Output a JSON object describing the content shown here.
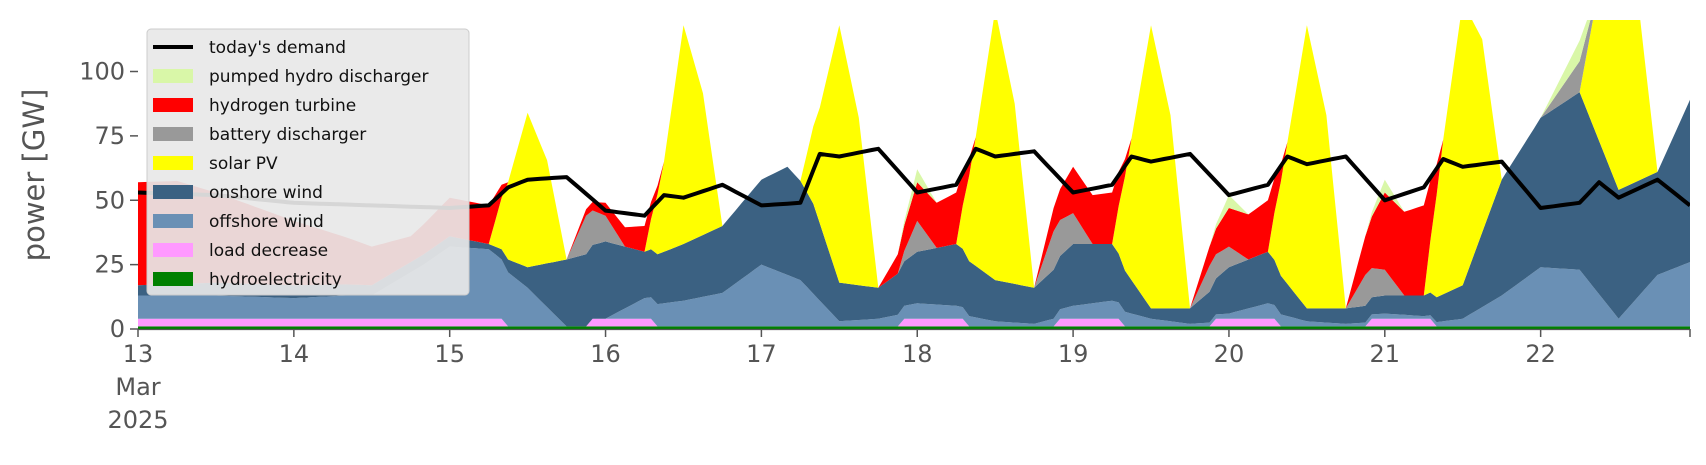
{
  "chart_data": {
    "type": "area",
    "ylabel": "power [GW]",
    "xlabel": "",
    "ylim": [
      0,
      120
    ],
    "xlim": [
      "2025-03-13T00:00",
      "2025-03-22T23:00"
    ],
    "yticks": [
      0,
      25,
      50,
      75,
      100
    ],
    "x_tick_labels": [
      {
        "date": "2025-03-13",
        "lines": [
          "13",
          "Mar",
          "2025"
        ]
      },
      {
        "date": "2025-03-14",
        "lines": [
          "14"
        ]
      },
      {
        "date": "2025-03-15",
        "lines": [
          "15"
        ]
      },
      {
        "date": "2025-03-16",
        "lines": [
          "16"
        ]
      },
      {
        "date": "2025-03-17",
        "lines": [
          "17"
        ]
      },
      {
        "date": "2025-03-18",
        "lines": [
          "18"
        ]
      },
      {
        "date": "2025-03-19",
        "lines": [
          "19"
        ]
      },
      {
        "date": "2025-03-20",
        "lines": [
          "20"
        ]
      },
      {
        "date": "2025-03-21",
        "lines": [
          "21"
        ]
      },
      {
        "date": "2025-03-22",
        "lines": [
          "22"
        ]
      }
    ],
    "grid": false,
    "legend_position": "top-left",
    "legend": [
      {
        "label": "today's demand",
        "color": "#000000",
        "kind": "line"
      },
      {
        "label": "pumped hydro discharger",
        "color": "#d9f7a8",
        "kind": "patch"
      },
      {
        "label": "hydrogen turbine",
        "color": "#ff0000",
        "kind": "patch"
      },
      {
        "label": "battery discharger",
        "color": "#999999",
        "kind": "patch"
      },
      {
        "label": "solar PV",
        "color": "#ffff00",
        "kind": "patch"
      },
      {
        "label": "onshore wind",
        "color": "#3b6182",
        "kind": "patch"
      },
      {
        "label": "offshore wind",
        "color": "#6a90b5",
        "kind": "patch"
      },
      {
        "label": "load decrease",
        "color": "#ff99ff",
        "kind": "patch"
      },
      {
        "label": "hydroelectricity",
        "color": "#008000",
        "kind": "patch"
      }
    ],
    "stack_order_bottom_to_top": [
      "hydroelectricity",
      "load decrease",
      "offshore wind",
      "onshore wind",
      "solar PV",
      "battery discharger",
      "hydrogen turbine",
      "pumped hydro discharger"
    ],
    "series": [
      {
        "name": "hydroelectricity",
        "color": "#008000",
        "x": [
          "2025-03-13T00:00",
          "2025-03-22T23:00"
        ],
        "values": [
          1,
          1
        ]
      },
      {
        "name": "load decrease",
        "color": "#ff99ff",
        "x": [
          "2025-03-13T00:00",
          "2025-03-15T08:00",
          "2025-03-15T09:00",
          "2025-03-15T21:00",
          "2025-03-15T22:00",
          "2025-03-16T07:00",
          "2025-03-16T08:00",
          "2025-03-17T21:00",
          "2025-03-17T22:00",
          "2025-03-18T07:00",
          "2025-03-18T08:00",
          "2025-03-18T21:00",
          "2025-03-18T22:00",
          "2025-03-19T07:00",
          "2025-03-19T08:00",
          "2025-03-19T21:00",
          "2025-03-19T22:00",
          "2025-03-20T07:00",
          "2025-03-20T08:00",
          "2025-03-20T21:00",
          "2025-03-20T22:00",
          "2025-03-21T07:00",
          "2025-03-21T08:00",
          "2025-03-22T23:00"
        ],
        "values": [
          3,
          3,
          0,
          0,
          3,
          3,
          0,
          0,
          3,
          3,
          0,
          0,
          3,
          3,
          0,
          0,
          3,
          3,
          0,
          0,
          3,
          3,
          0,
          0
        ]
      },
      {
        "name": "offshore wind",
        "color": "#6a90b5",
        "x": [
          "2025-03-13T00:00",
          "2025-03-13T12:00",
          "2025-03-14T00:00",
          "2025-03-14T08:00",
          "2025-03-14T12:00",
          "2025-03-14T20:00",
          "2025-03-15T00:00",
          "2025-03-15T06:00",
          "2025-03-15T12:00",
          "2025-03-15T18:00",
          "2025-03-16T00:00",
          "2025-03-16T06:00",
          "2025-03-16T12:00",
          "2025-03-16T18:00",
          "2025-03-17T00:00",
          "2025-03-17T06:00",
          "2025-03-17T12:00",
          "2025-03-17T18:00",
          "2025-03-18T00:00",
          "2025-03-18T06:00",
          "2025-03-18T12:00",
          "2025-03-18T18:00",
          "2025-03-19T00:00",
          "2025-03-19T06:00",
          "2025-03-19T12:00",
          "2025-03-19T18:00",
          "2025-03-20T00:00",
          "2025-03-20T06:00",
          "2025-03-20T12:00",
          "2025-03-20T18:00",
          "2025-03-21T00:00",
          "2025-03-21T06:00",
          "2025-03-21T12:00",
          "2025-03-21T18:00",
          "2025-03-22T00:00",
          "2025-03-22T06:00",
          "2025-03-22T12:00",
          "2025-03-22T18:00",
          "2025-03-22T23:00"
        ],
        "values": [
          9,
          9,
          8,
          9,
          9,
          21,
          28,
          27,
          15,
          0,
          0,
          8,
          10,
          13,
          24,
          18,
          2,
          3,
          6,
          5,
          2,
          1,
          5,
          7,
          3,
          1,
          2,
          6,
          2,
          1,
          2,
          1,
          3,
          12,
          23,
          22,
          3,
          20,
          25
        ]
      },
      {
        "name": "onshore wind",
        "color": "#3b6182",
        "x": [
          "2025-03-13T00:00",
          "2025-03-13T12:00",
          "2025-03-14T00:00",
          "2025-03-14T12:00",
          "2025-03-15T00:00",
          "2025-03-15T06:00",
          "2025-03-15T12:00",
          "2025-03-15T18:00",
          "2025-03-16T00:00",
          "2025-03-16T06:00",
          "2025-03-16T12:00",
          "2025-03-16T18:00",
          "2025-03-17T00:00",
          "2025-03-17T04:00",
          "2025-03-17T08:00",
          "2025-03-17T12:00",
          "2025-03-17T18:00",
          "2025-03-18T00:00",
          "2025-03-18T06:00",
          "2025-03-18T12:00",
          "2025-03-18T18:00",
          "2025-03-19T00:00",
          "2025-03-19T06:00",
          "2025-03-19T12:00",
          "2025-03-19T18:00",
          "2025-03-20T00:00",
          "2025-03-20T06:00",
          "2025-03-20T12:00",
          "2025-03-20T18:00",
          "2025-03-21T00:00",
          "2025-03-21T06:00",
          "2025-03-21T12:00",
          "2025-03-21T18:00",
          "2025-03-22T00:00",
          "2025-03-22T06:00",
          "2025-03-22T12:00",
          "2025-03-22T18:00",
          "2025-03-22T23:00"
        ],
        "values": [
          4,
          5,
          5,
          4,
          4,
          2,
          8,
          26,
          30,
          18,
          22,
          26,
          33,
          42,
          35,
          15,
          12,
          20,
          24,
          16,
          14,
          24,
          22,
          4,
          6,
          18,
          20,
          5,
          6,
          7,
          8,
          13,
          45,
          58,
          69,
          50,
          40,
          63
        ]
      },
      {
        "name": "solar PV",
        "color": "#ffff00",
        "x": [
          "2025-03-13T00:00",
          "2025-03-13T06:00",
          "2025-03-13T12:00",
          "2025-03-13T18:00",
          "2025-03-14T06:00",
          "2025-03-14T12:00",
          "2025-03-14T18:00",
          "2025-03-15T06:00",
          "2025-03-15T09:00",
          "2025-03-15T12:00",
          "2025-03-15T15:00",
          "2025-03-15T18:00",
          "2025-03-16T06:00",
          "2025-03-16T09:00",
          "2025-03-16T12:00",
          "2025-03-16T15:00",
          "2025-03-16T18:00",
          "2025-03-17T06:00",
          "2025-03-17T09:00",
          "2025-03-17T12:00",
          "2025-03-17T15:00",
          "2025-03-17T18:00",
          "2025-03-18T06:00",
          "2025-03-18T09:00",
          "2025-03-18T12:00",
          "2025-03-18T15:00",
          "2025-03-18T18:00",
          "2025-03-19T06:00",
          "2025-03-19T09:00",
          "2025-03-19T12:00",
          "2025-03-19T15:00",
          "2025-03-19T18:00",
          "2025-03-20T06:00",
          "2025-03-20T09:00",
          "2025-03-20T12:00",
          "2025-03-20T15:00",
          "2025-03-20T18:00",
          "2025-03-21T06:00",
          "2025-03-21T09:00",
          "2025-03-21T12:00",
          "2025-03-21T15:00",
          "2025-03-21T18:00",
          "2025-03-22T06:00",
          "2025-03-22T09:00",
          "2025-03-22T12:00",
          "2025-03-22T15:00",
          "2025-03-22T18:00",
          "2025-03-22T23:00"
        ],
        "values": [
          0,
          0,
          0,
          0,
          0,
          0,
          0,
          0,
          30,
          60,
          40,
          0,
          0,
          35,
          85,
          55,
          0,
          0,
          45,
          100,
          65,
          0,
          0,
          50,
          105,
          70,
          0,
          0,
          55,
          110,
          75,
          0,
          0,
          55,
          110,
          75,
          0,
          0,
          60,
          110,
          75,
          0,
          0,
          60,
          110,
          70,
          0,
          0
        ]
      },
      {
        "name": "battery discharger",
        "color": "#999999",
        "x": [
          "2025-03-13T00:00",
          "2025-03-15T18:00",
          "2025-03-15T21:00",
          "2025-03-16T00:00",
          "2025-03-16T03:00",
          "2025-03-16T06:00",
          "2025-03-17T21:00",
          "2025-03-18T00:00",
          "2025-03-18T03:00",
          "2025-03-18T18:00",
          "2025-03-18T21:00",
          "2025-03-19T00:00",
          "2025-03-19T03:00",
          "2025-03-19T18:00",
          "2025-03-19T21:00",
          "2025-03-20T00:00",
          "2025-03-20T03:00",
          "2025-03-20T18:00",
          "2025-03-20T21:00",
          "2025-03-21T00:00",
          "2025-03-21T03:00",
          "2025-03-21T18:00",
          "2025-03-22T00:00",
          "2025-03-22T06:00",
          "2025-03-22T09:00",
          "2025-03-22T23:00"
        ],
        "values": [
          0,
          0,
          15,
          10,
          0,
          0,
          0,
          12,
          0,
          0,
          15,
          12,
          0,
          0,
          10,
          8,
          0,
          0,
          12,
          10,
          0,
          0,
          0,
          12,
          0,
          0
        ]
      },
      {
        "name": "hydrogen turbine",
        "color": "#ff0000",
        "x": [
          "2025-03-13T00:00",
          "2025-03-13T06:00",
          "2025-03-14T18:00",
          "2025-03-15T00:00",
          "2025-03-15T06:00",
          "2025-03-15T09:00",
          "2025-03-15T18:00",
          "2025-03-16T00:00",
          "2025-03-16T06:00",
          "2025-03-16T09:00",
          "2025-03-17T18:00",
          "2025-03-18T00:00",
          "2025-03-18T06:00",
          "2025-03-18T09:00",
          "2025-03-18T18:00",
          "2025-03-19T00:00",
          "2025-03-19T06:00",
          "2025-03-19T09:00",
          "2025-03-19T18:00",
          "2025-03-20T00:00",
          "2025-03-20T06:00",
          "2025-03-20T09:00",
          "2025-03-20T18:00",
          "2025-03-21T00:00",
          "2025-03-21T06:00",
          "2025-03-21T09:00",
          "2025-03-22T00:00",
          "2025-03-22T23:00"
        ],
        "values": [
          40,
          40,
          10,
          15,
          15,
          0,
          0,
          5,
          10,
          0,
          0,
          15,
          20,
          0,
          0,
          18,
          20,
          0,
          0,
          15,
          20,
          0,
          0,
          30,
          35,
          0,
          0,
          0
        ]
      },
      {
        "name": "pumped hydro discharger",
        "color": "#d9f7a8",
        "x": [
          "2025-03-13T00:00",
          "2025-03-17T21:00",
          "2025-03-18T00:00",
          "2025-03-18T03:00",
          "2025-03-19T21:00",
          "2025-03-20T00:00",
          "2025-03-20T03:00",
          "2025-03-20T21:00",
          "2025-03-21T00:00",
          "2025-03-21T03:00",
          "2025-03-22T00:00",
          "2025-03-22T06:00",
          "2025-03-22T09:00",
          "2025-03-22T23:00"
        ],
        "values": [
          0,
          0,
          5,
          0,
          0,
          5,
          0,
          0,
          5,
          0,
          0,
          8,
          0,
          0
        ]
      },
      {
        "name": "today's demand",
        "color": "#000000",
        "kind": "line",
        "x": [
          "2025-03-13T00:00",
          "2025-03-13T12:00",
          "2025-03-14T00:00",
          "2025-03-14T12:00",
          "2025-03-15T00:00",
          "2025-03-15T06:00",
          "2025-03-15T09:00",
          "2025-03-15T12:00",
          "2025-03-15T18:00",
          "2025-03-16T00:00",
          "2025-03-16T06:00",
          "2025-03-16T09:00",
          "2025-03-16T12:00",
          "2025-03-16T18:00",
          "2025-03-17T00:00",
          "2025-03-17T06:00",
          "2025-03-17T09:00",
          "2025-03-17T12:00",
          "2025-03-17T18:00",
          "2025-03-18T00:00",
          "2025-03-18T06:00",
          "2025-03-18T09:00",
          "2025-03-18T12:00",
          "2025-03-18T18:00",
          "2025-03-19T00:00",
          "2025-03-19T06:00",
          "2025-03-19T09:00",
          "2025-03-19T12:00",
          "2025-03-19T18:00",
          "2025-03-20T00:00",
          "2025-03-20T06:00",
          "2025-03-20T09:00",
          "2025-03-20T12:00",
          "2025-03-20T18:00",
          "2025-03-21T00:00",
          "2025-03-21T06:00",
          "2025-03-21T09:00",
          "2025-03-21T12:00",
          "2025-03-21T18:00",
          "2025-03-22T00:00",
          "2025-03-22T06:00",
          "2025-03-22T09:00",
          "2025-03-22T12:00",
          "2025-03-22T18:00",
          "2025-03-22T23:00"
        ],
        "values": [
          53,
          52,
          49,
          48,
          47,
          48,
          55,
          58,
          59,
          46,
          44,
          52,
          51,
          56,
          48,
          49,
          68,
          67,
          70,
          53,
          56,
          70,
          67,
          69,
          53,
          56,
          67,
          65,
          68,
          52,
          56,
          67,
          64,
          67,
          50,
          55,
          66,
          63,
          65,
          47,
          49,
          57,
          51,
          58,
          48
        ]
      }
    ]
  }
}
